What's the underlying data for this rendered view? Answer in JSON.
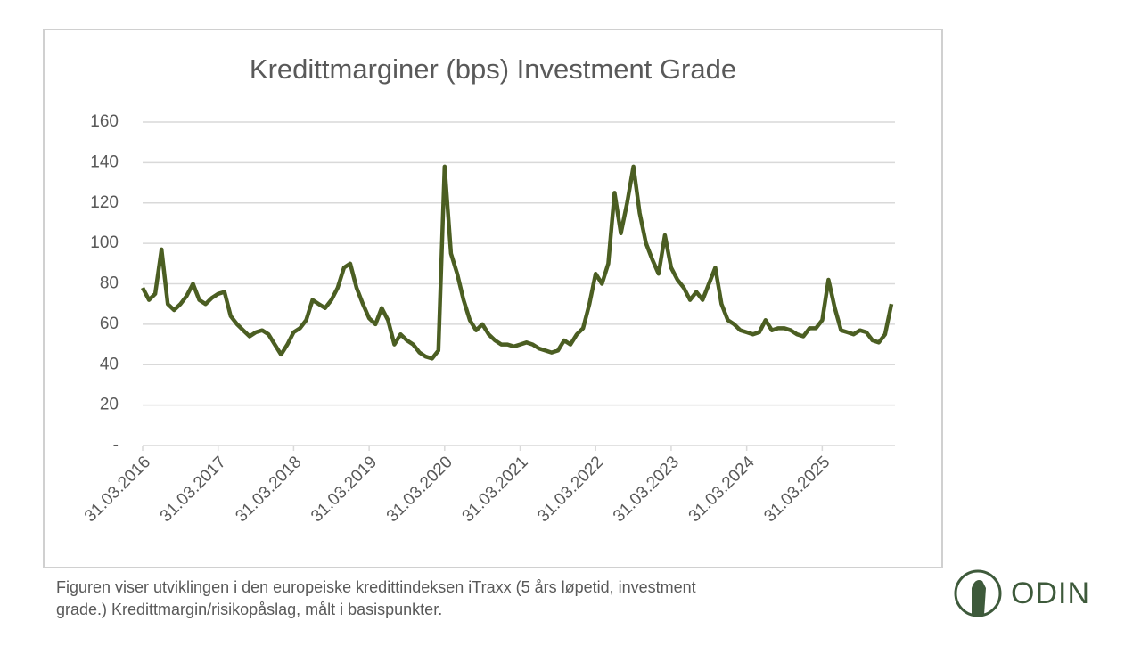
{
  "chart_data": {
    "type": "line",
    "title": "Kredittmarginer (bps) Investment Grade",
    "categories": [
      "31.03.2016",
      null,
      null,
      null,
      null,
      null,
      null,
      null,
      null,
      null,
      null,
      null,
      "31.03.2017",
      null,
      null,
      null,
      null,
      null,
      null,
      null,
      null,
      null,
      null,
      null,
      "31.03.2018",
      null,
      null,
      null,
      null,
      null,
      null,
      null,
      null,
      null,
      null,
      null,
      "31.03.2019",
      null,
      null,
      null,
      null,
      null,
      null,
      null,
      null,
      null,
      null,
      null,
      "31.03.2020",
      null,
      null,
      null,
      null,
      null,
      null,
      null,
      null,
      null,
      null,
      null,
      "31.03.2021",
      null,
      null,
      null,
      null,
      null,
      null,
      null,
      null,
      null,
      null,
      null,
      "31.03.2022",
      null,
      null,
      null,
      null,
      null,
      null,
      null,
      null,
      null,
      null,
      null,
      "31.03.2023",
      null,
      null,
      null,
      null,
      null,
      null,
      null,
      null,
      null,
      null,
      null,
      "31.03.2024",
      null,
      null,
      null,
      null,
      null,
      null,
      null,
      null,
      null,
      null,
      null,
      "31.03.2025",
      null,
      null,
      null,
      null,
      null,
      null,
      null,
      null,
      null,
      null,
      null
    ],
    "values": [
      78,
      72,
      75,
      97,
      70,
      67,
      70,
      74,
      80,
      72,
      70,
      73,
      75,
      76,
      64,
      60,
      57,
      54,
      56,
      57,
      55,
      50,
      45,
      50,
      56,
      58,
      62,
      72,
      70,
      68,
      72,
      78,
      88,
      90,
      78,
      70,
      63,
      60,
      68,
      62,
      50,
      55,
      52,
      50,
      46,
      44,
      43,
      47,
      138,
      95,
      85,
      72,
      62,
      57,
      60,
      55,
      52,
      50,
      50,
      49,
      50,
      51,
      50,
      48,
      47,
      46,
      47,
      52,
      50,
      55,
      58,
      70,
      85,
      80,
      90,
      125,
      105,
      120,
      138,
      115,
      100,
      92,
      85,
      104,
      88,
      82,
      78,
      72,
      76,
      72,
      80,
      88,
      70,
      62,
      60,
      57,
      56,
      55,
      56,
      62,
      57,
      58,
      58,
      57,
      55,
      54,
      58,
      58,
      62,
      82,
      68,
      57,
      56,
      55,
      57,
      56,
      52,
      51,
      55,
      70
    ],
    "color": "#4b5e22",
    "ylim": [
      0,
      160
    ],
    "yticks": [
      {
        "value": 0,
        "label": "-"
      },
      20,
      40,
      60,
      80,
      100,
      120,
      140,
      160
    ],
    "grid": true
  },
  "footer": {
    "caption_lines": [
      "Figuren viser utviklingen i den europeiske kredittindeksen iTraxx (5 års løpetid, investment",
      "grade.) Kredittmargin/risikopåslag, målt i basispunkter."
    ],
    "logo": "ODIN"
  }
}
